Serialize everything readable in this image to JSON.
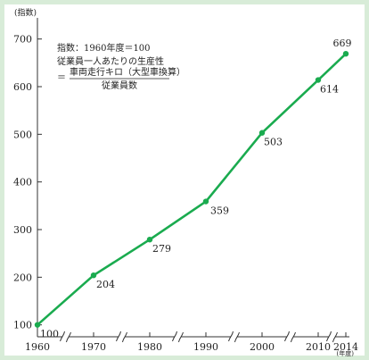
{
  "chart_data": {
    "type": "line",
    "y_axis_unit_label": "(指数)",
    "x_axis_unit_label": "(年度)",
    "note": {
      "line1": "指数：1960年度＝100",
      "line2": "従業員一人あたりの生産性",
      "eq_prefix": "＝",
      "numerator": "車両走行キロ（大型車換算）",
      "denominator": "従業員数"
    },
    "x_ticks": [
      "1960",
      "1970",
      "1980",
      "1990",
      "2000",
      "2010",
      "2014"
    ],
    "y_ticks": [
      "100",
      "200",
      "300",
      "400",
      "500",
      "600",
      "700"
    ],
    "ylim": [
      75,
      735
    ],
    "axis_breaks_between": [
      [
        1960,
        1970
      ],
      [
        1970,
        1980
      ],
      [
        1980,
        1990
      ],
      [
        1990,
        2000
      ],
      [
        2000,
        2010
      ],
      [
        2010,
        2014
      ]
    ],
    "series": [
      {
        "x": [
          1960,
          1970,
          1980,
          1990,
          2000,
          2010,
          2014
        ],
        "values": [
          100,
          204,
          279,
          359,
          503,
          614,
          669
        ],
        "labels": [
          "100",
          "204",
          "279",
          "359",
          "503",
          "614",
          "669"
        ]
      }
    ],
    "colors": {
      "line": "#1aab4f",
      "border": "#cfe6cf",
      "grid": "#333333"
    },
    "grid": false
  }
}
